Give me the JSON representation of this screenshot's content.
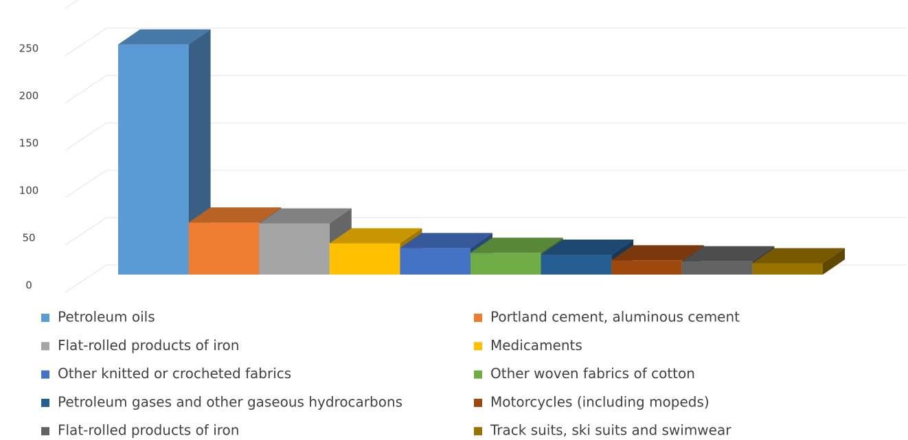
{
  "chart_data": {
    "type": "bar3d",
    "categories": [
      "Petroleum oils",
      "Portland cement, aluminous cement",
      "Flat-rolled products of iron",
      "Medicaments",
      "Other knitted or crocheted fabrics",
      "Other woven fabrics of cotton",
      "Petroleum gases and other gaseous hydrocarbons",
      "Motorcycles (including mopeds)",
      "Flat-rolled products of iron",
      "Track suits, ski suits and swimwear"
    ],
    "values": [
      243,
      55,
      54,
      33,
      28,
      23,
      21,
      15,
      14,
      12
    ],
    "colors": [
      "#5b9bd5",
      "#ed7d31",
      "#a5a5a5",
      "#ffc000",
      "#4472c4",
      "#70ad47",
      "#255e91",
      "#9e480e",
      "#636363",
      "#997300"
    ],
    "ylim": [
      0,
      300
    ],
    "yticks": [
      0,
      50,
      100,
      150,
      200,
      250
    ],
    "grid": true,
    "legend": "bottom"
  }
}
